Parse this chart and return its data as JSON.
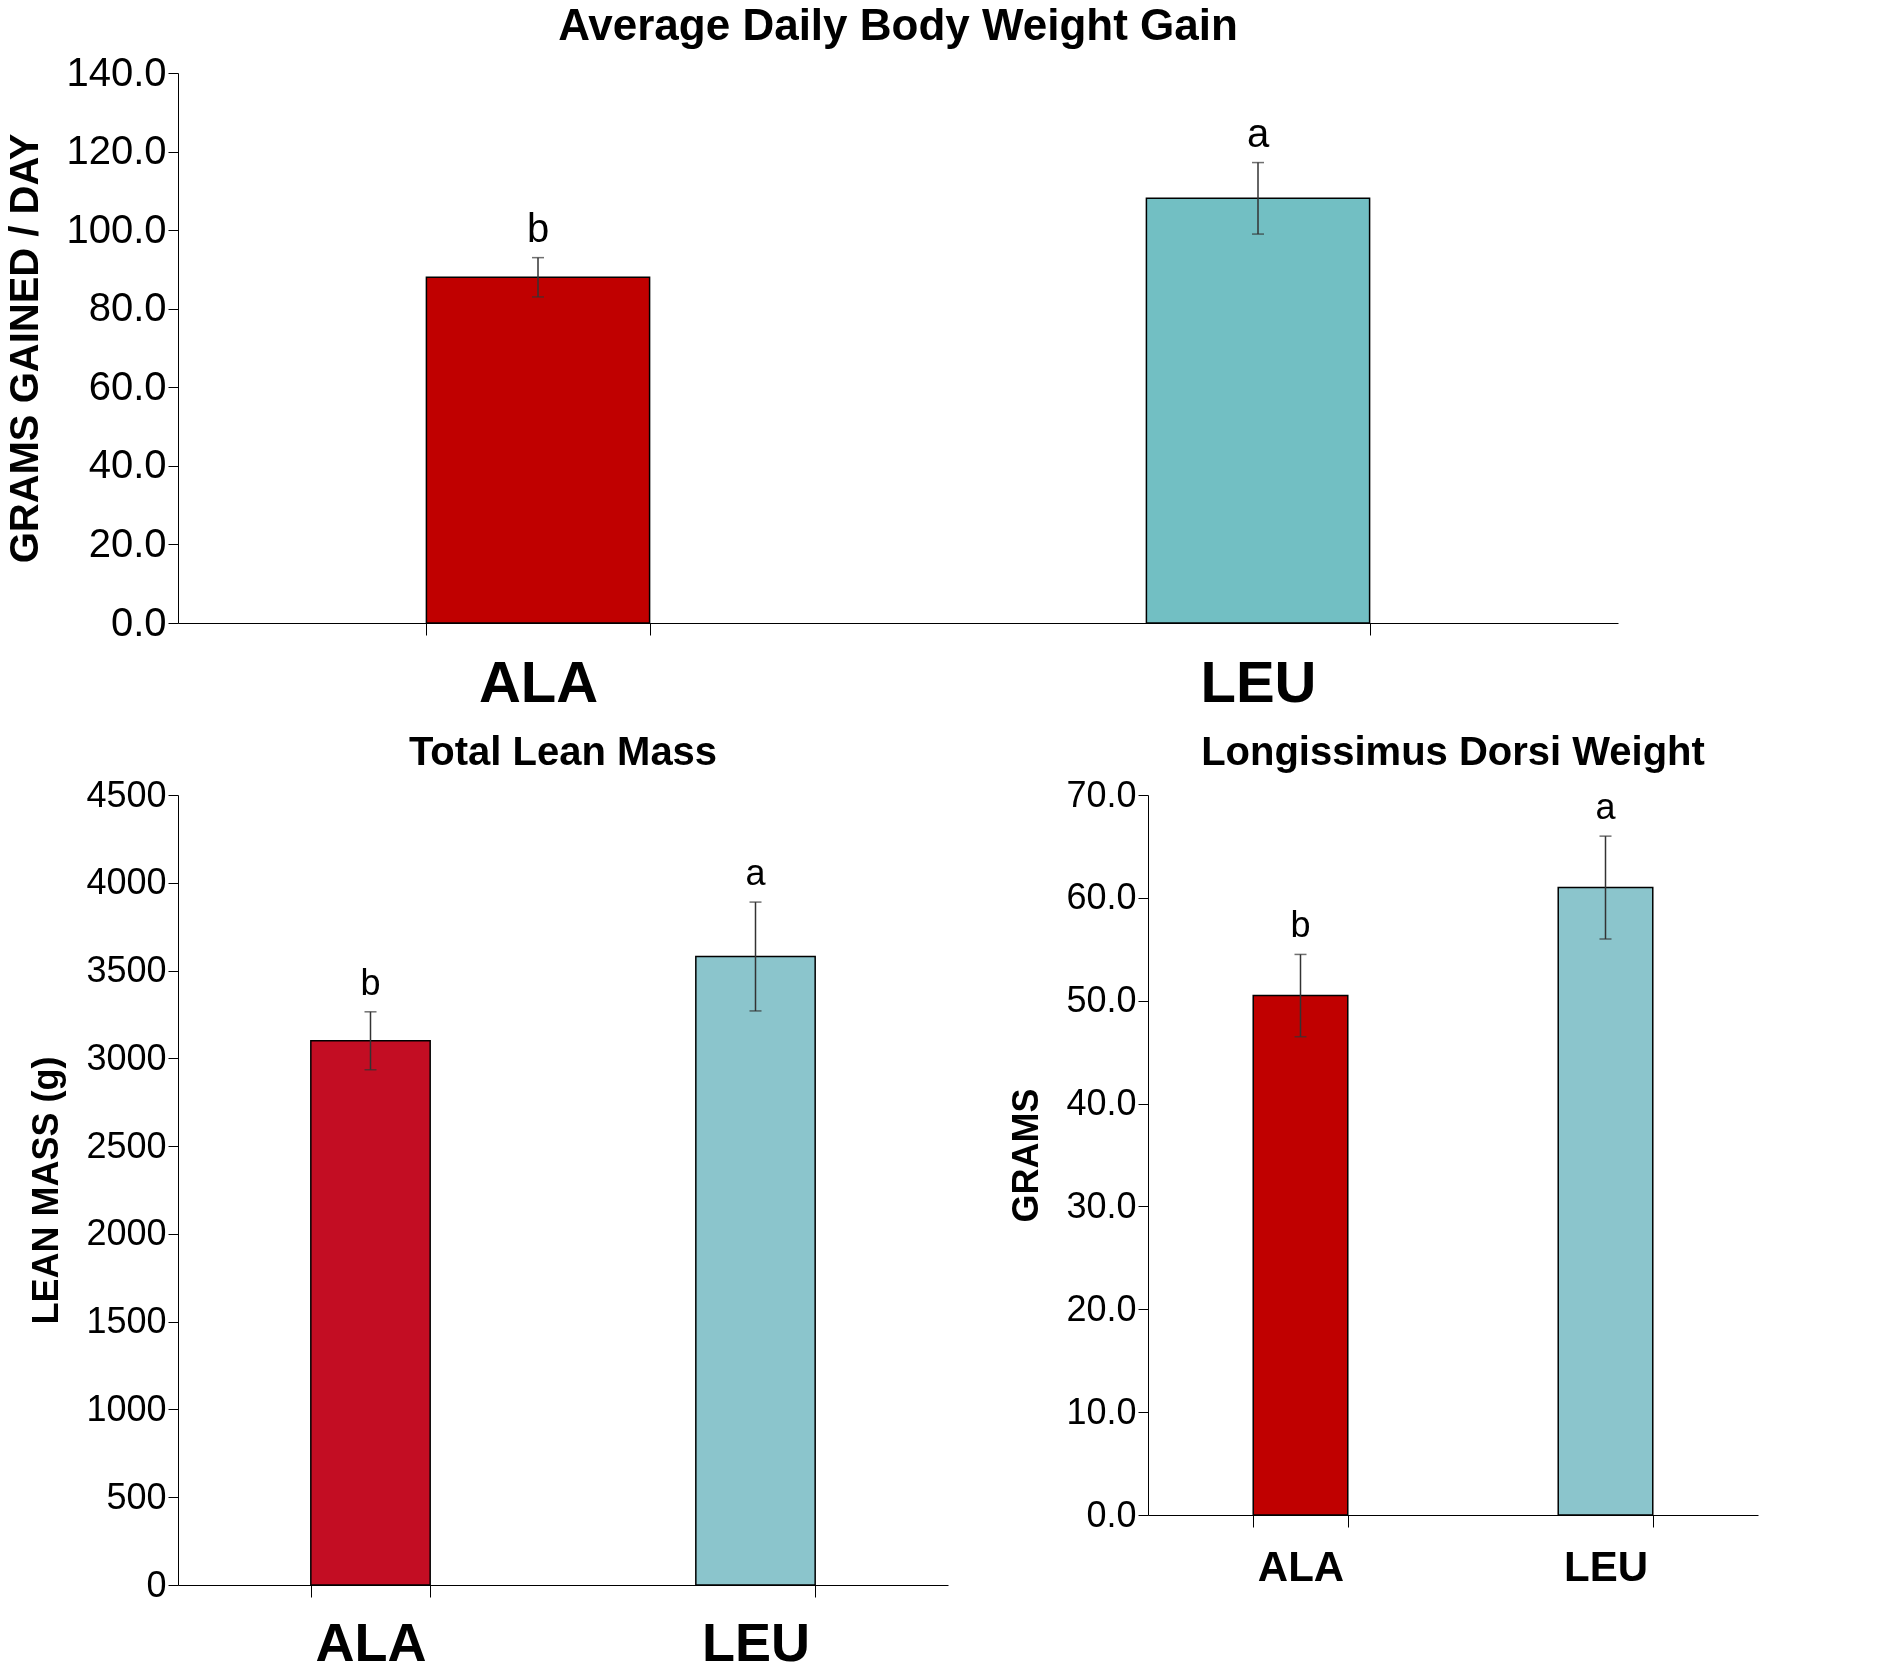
{
  "chart_data": [
    {
      "type": "bar",
      "title": "Average Daily Body Weight Gain",
      "ylabel": "GRAMS GAINED / DAY",
      "categories": [
        "ALA",
        "LEU"
      ],
      "values": [
        88.0,
        108.1
      ],
      "errors": [
        5.0,
        9.1
      ],
      "colors": [
        "#c00000",
        "#72bfc3"
      ],
      "ylim": [
        0,
        140
      ],
      "yticks": [
        {
          "value": 0,
          "label": "0.0"
        },
        {
          "value": 20,
          "label": "20.0"
        },
        {
          "value": 40,
          "label": "40.0"
        },
        {
          "value": 60,
          "label": "60.0"
        },
        {
          "value": 80,
          "label": "80.0"
        },
        {
          "value": 100,
          "label": "100.0"
        },
        {
          "value": 120,
          "label": "120.0"
        },
        {
          "value": 140,
          "label": "140.0"
        }
      ],
      "annotations": [
        {
          "text": "b",
          "x": "ALA",
          "y": 93.0
        },
        {
          "text": "a",
          "x": "LEU",
          "y": 117.2
        }
      ]
    },
    {
      "type": "bar",
      "title": "Total Lean Mass",
      "ylabel": "LEAN MASS (g)",
      "categories": [
        "ALA",
        "LEU"
      ],
      "values": [
        3100,
        3580
      ],
      "errors": [
        165,
        310
      ],
      "colors": [
        "#c30d23",
        "#8bc5cc"
      ],
      "ylim": [
        0,
        4500
      ],
      "yticks": [
        0,
        500,
        1000,
        1500,
        2000,
        2500,
        3000,
        3500,
        4000,
        4500
      ],
      "annotations": [
        {
          "text": "b",
          "x": "ALA",
          "y": 3265
        },
        {
          "text": "a",
          "x": "LEU",
          "y": 3890
        }
      ]
    },
    {
      "type": "bar",
      "title": "Longissimus Dorsi Weight",
      "ylabel": "GRAMS",
      "categories": [
        "ALA",
        "LEU"
      ],
      "values": [
        50.5,
        61.0
      ],
      "errors": [
        4.0,
        5.0
      ],
      "colors": [
        "#c00000",
        "#8bc5cc"
      ],
      "ylim": [
        0,
        70
      ],
      "yticks": [
        {
          "value": 0,
          "label": "0.0"
        },
        {
          "value": 10,
          "label": "10.0"
        },
        {
          "value": 20,
          "label": "20.0"
        },
        {
          "value": 30,
          "label": "30.0"
        },
        {
          "value": 40,
          "label": "40.0"
        },
        {
          "value": 50,
          "label": "50.0"
        },
        {
          "value": 60,
          "label": "60.0"
        },
        {
          "value": 70,
          "label": "70.0"
        }
      ],
      "annotations": [
        {
          "text": "b",
          "x": "ALA",
          "y": 54.5
        },
        {
          "text": "a",
          "x": "LEU",
          "y": 66.0
        }
      ]
    }
  ]
}
